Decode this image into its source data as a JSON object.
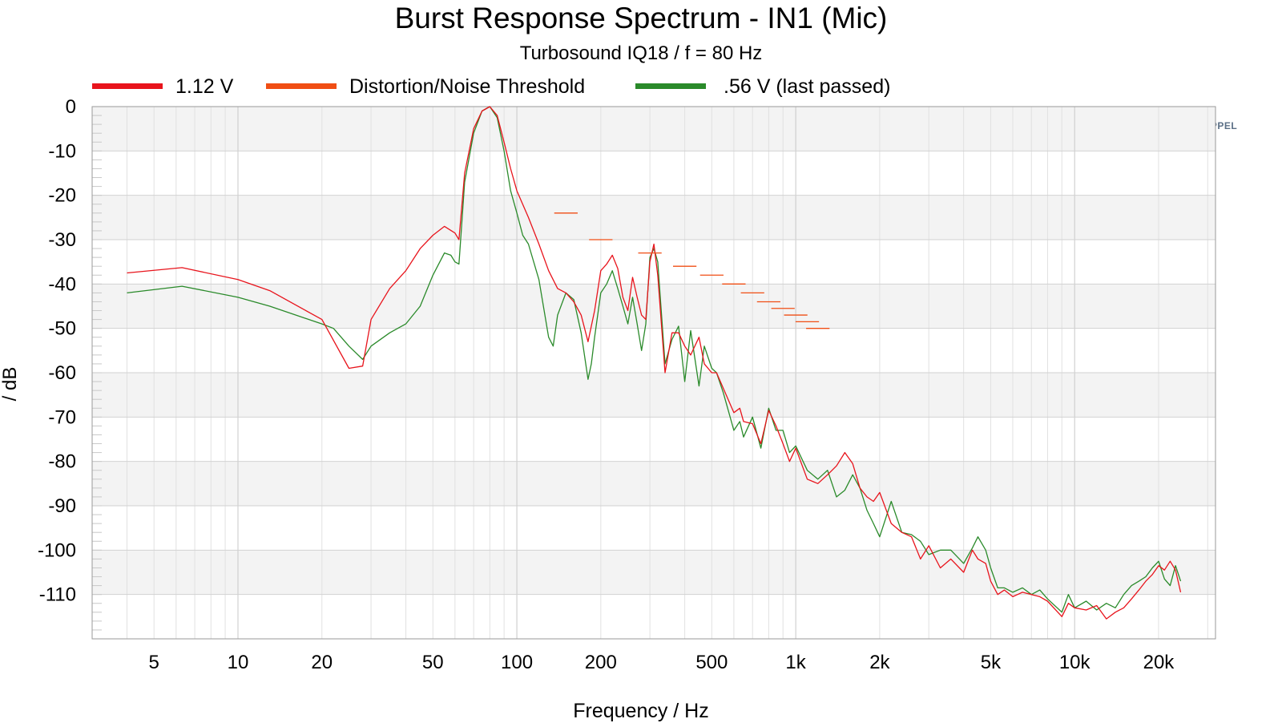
{
  "chart_data": {
    "type": "line",
    "title": "Burst Response Spectrum - IN1 (Mic)",
    "subtitle": "Turbosound IQ18 / f = 80 Hz",
    "xlabel": "Frequency / Hz",
    "ylabel": "/ dB",
    "xscale": "log",
    "xlim": [
      3,
      32000
    ],
    "ylim": [
      -120,
      0
    ],
    "xticks": [
      5,
      10,
      20,
      50,
      100,
      200,
      500,
      1000,
      2000,
      5000,
      10000,
      20000
    ],
    "xtick_labels": [
      "5",
      "10",
      "20",
      "50",
      "100",
      "200",
      "500",
      "1k",
      "2k",
      "5k",
      "10k",
      "20k"
    ],
    "yticks": [
      0,
      -10,
      -20,
      -30,
      -40,
      -50,
      -60,
      -70,
      -80,
      -90,
      -100,
      -110
    ],
    "ytick_labels": [
      "0",
      "-10",
      "-20",
      "-30",
      "-40",
      "-50",
      "-60",
      "-70",
      "-80",
      "-90",
      "-100",
      "-110"
    ],
    "grid": true,
    "legend_position": "top",
    "brand": "KLIPPEL",
    "series": [
      {
        "name": "1.12 V",
        "color": "#e8141c",
        "style": "line",
        "x": [
          4,
          6.3,
          10,
          13,
          20,
          25,
          28,
          30,
          35,
          40,
          45,
          50,
          55,
          60,
          62,
          65,
          70,
          75,
          80,
          85,
          90,
          95,
          100,
          110,
          120,
          130,
          140,
          150,
          160,
          170,
          180,
          190,
          200,
          210,
          220,
          230,
          240,
          250,
          260,
          270,
          280,
          290,
          300,
          310,
          320,
          340,
          360,
          380,
          400,
          420,
          450,
          470,
          500,
          520,
          550,
          600,
          630,
          650,
          700,
          750,
          800,
          850,
          900,
          950,
          1000,
          1100,
          1200,
          1300,
          1400,
          1500,
          1600,
          1700,
          1800,
          1900,
          2000,
          2200,
          2400,
          2600,
          2800,
          3000,
          3300,
          3600,
          4000,
          4300,
          4500,
          4800,
          5000,
          5300,
          5600,
          6000,
          6500,
          7000,
          7500,
          8000,
          9000,
          9500,
          10000,
          11000,
          12000,
          13000,
          14000,
          15000,
          16000,
          17000,
          18000,
          19000,
          20000,
          21000,
          22000,
          23000,
          24000
        ],
        "y": [
          -37.5,
          -36.3,
          -39,
          -41.5,
          -48,
          -59,
          -58.5,
          -48,
          -41,
          -37,
          -32,
          -29,
          -27,
          -28.5,
          -30,
          -15,
          -5,
          -1,
          0,
          -2,
          -8,
          -14,
          -19,
          -25,
          -31,
          -37,
          -41,
          -42,
          -44,
          -47,
          -53,
          -46,
          -37,
          -35.5,
          -33.5,
          -36.5,
          -43,
          -46,
          -38.5,
          -43,
          -47,
          -48,
          -35,
          -31,
          -38,
          -60,
          -51,
          -51,
          -54,
          -56,
          -52,
          -58,
          -60,
          -60,
          -63.5,
          -69,
          -68,
          -71,
          -71.5,
          -76,
          -68.5,
          -72,
          -76,
          -80,
          -77,
          -84,
          -85,
          -83,
          -81,
          -78,
          -80.5,
          -86,
          -88,
          -89,
          -87,
          -94,
          -96,
          -97,
          -102,
          -99,
          -104,
          -102,
          -105,
          -100,
          -102,
          -103,
          -107,
          -110,
          -109,
          -110.5,
          -109.5,
          -110,
          -110.5,
          -111.5,
          -115,
          -112,
          -113,
          -113.5,
          -112.5,
          -115.5,
          -114,
          -113,
          -111,
          -109,
          -107,
          -105.5,
          -103.5,
          -104.5,
          -102.5,
          -104.5,
          -109.5
        ]
      },
      {
        "name": "Distortion/Noise Threshold",
        "color": "#f04e14",
        "style": "steps",
        "x": [
          150,
          200,
          300,
          400,
          500,
          600,
          700,
          800,
          900,
          1000,
          1100,
          1200
        ],
        "y": [
          -24,
          -30,
          -33,
          -36,
          -38,
          -40,
          -42,
          -44,
          -45.5,
          -47,
          -48.5,
          -50
        ]
      },
      {
        "name": ".56 V (last passed)",
        "color": "#2a8a2a",
        "style": "line",
        "x": [
          4,
          6.3,
          10,
          13,
          20,
          22,
          25,
          28,
          30,
          35,
          40,
          45,
          50,
          55,
          58,
          60,
          62,
          65,
          70,
          75,
          80,
          85,
          90,
          95,
          100,
          105,
          110,
          120,
          130,
          135,
          140,
          150,
          160,
          170,
          180,
          185,
          190,
          200,
          210,
          220,
          230,
          240,
          250,
          260,
          270,
          280,
          290,
          300,
          310,
          320,
          340,
          360,
          380,
          400,
          420,
          450,
          470,
          500,
          520,
          550,
          600,
          630,
          650,
          700,
          750,
          800,
          850,
          900,
          950,
          1000,
          1100,
          1200,
          1300,
          1400,
          1500,
          1600,
          1700,
          1800,
          1900,
          2000,
          2200,
          2400,
          2600,
          2800,
          3000,
          3300,
          3600,
          4000,
          4300,
          4500,
          4800,
          5000,
          5300,
          5600,
          6000,
          6500,
          7000,
          7500,
          8000,
          9000,
          9500,
          10000,
          11000,
          12000,
          13000,
          14000,
          15000,
          16000,
          17000,
          18000,
          19000,
          20000,
          21000,
          22000,
          23000,
          24000
        ],
        "y": [
          -42,
          -40.5,
          -43,
          -45,
          -49,
          -50,
          -54,
          -57,
          -54,
          -51,
          -49,
          -45,
          -38,
          -33,
          -33.5,
          -35,
          -35.5,
          -17,
          -6,
          -1,
          0,
          -2.5,
          -10,
          -19,
          -24,
          -29,
          -31,
          -39,
          -52,
          -54,
          -47,
          -42,
          -43.5,
          -51,
          -61.5,
          -58,
          -52,
          -42,
          -40,
          -37,
          -41,
          -45,
          -49,
          -43,
          -49,
          -55,
          -49,
          -34,
          -32,
          -35,
          -58,
          -52.5,
          -49.5,
          -62,
          -50.5,
          -63,
          -54,
          -59,
          -60,
          -64.5,
          -73,
          -71,
          -74.5,
          -70,
          -77,
          -68,
          -73,
          -73,
          -78,
          -76.5,
          -82,
          -84,
          -82,
          -88,
          -86.5,
          -83,
          -86,
          -91,
          -94,
          -97,
          -89,
          -96,
          -96.5,
          -98,
          -101,
          -100,
          -100,
          -103,
          -99.5,
          -97,
          -100,
          -104,
          -108.5,
          -108.5,
          -109.5,
          -108.5,
          -110,
          -109,
          -111,
          -114,
          -110,
          -113,
          -111.5,
          -113.5,
          -112,
          -113,
          -110,
          -108,
          -107,
          -106,
          -104,
          -102.5,
          -106.5,
          -108,
          -103.5,
          -107
        ]
      }
    ]
  }
}
